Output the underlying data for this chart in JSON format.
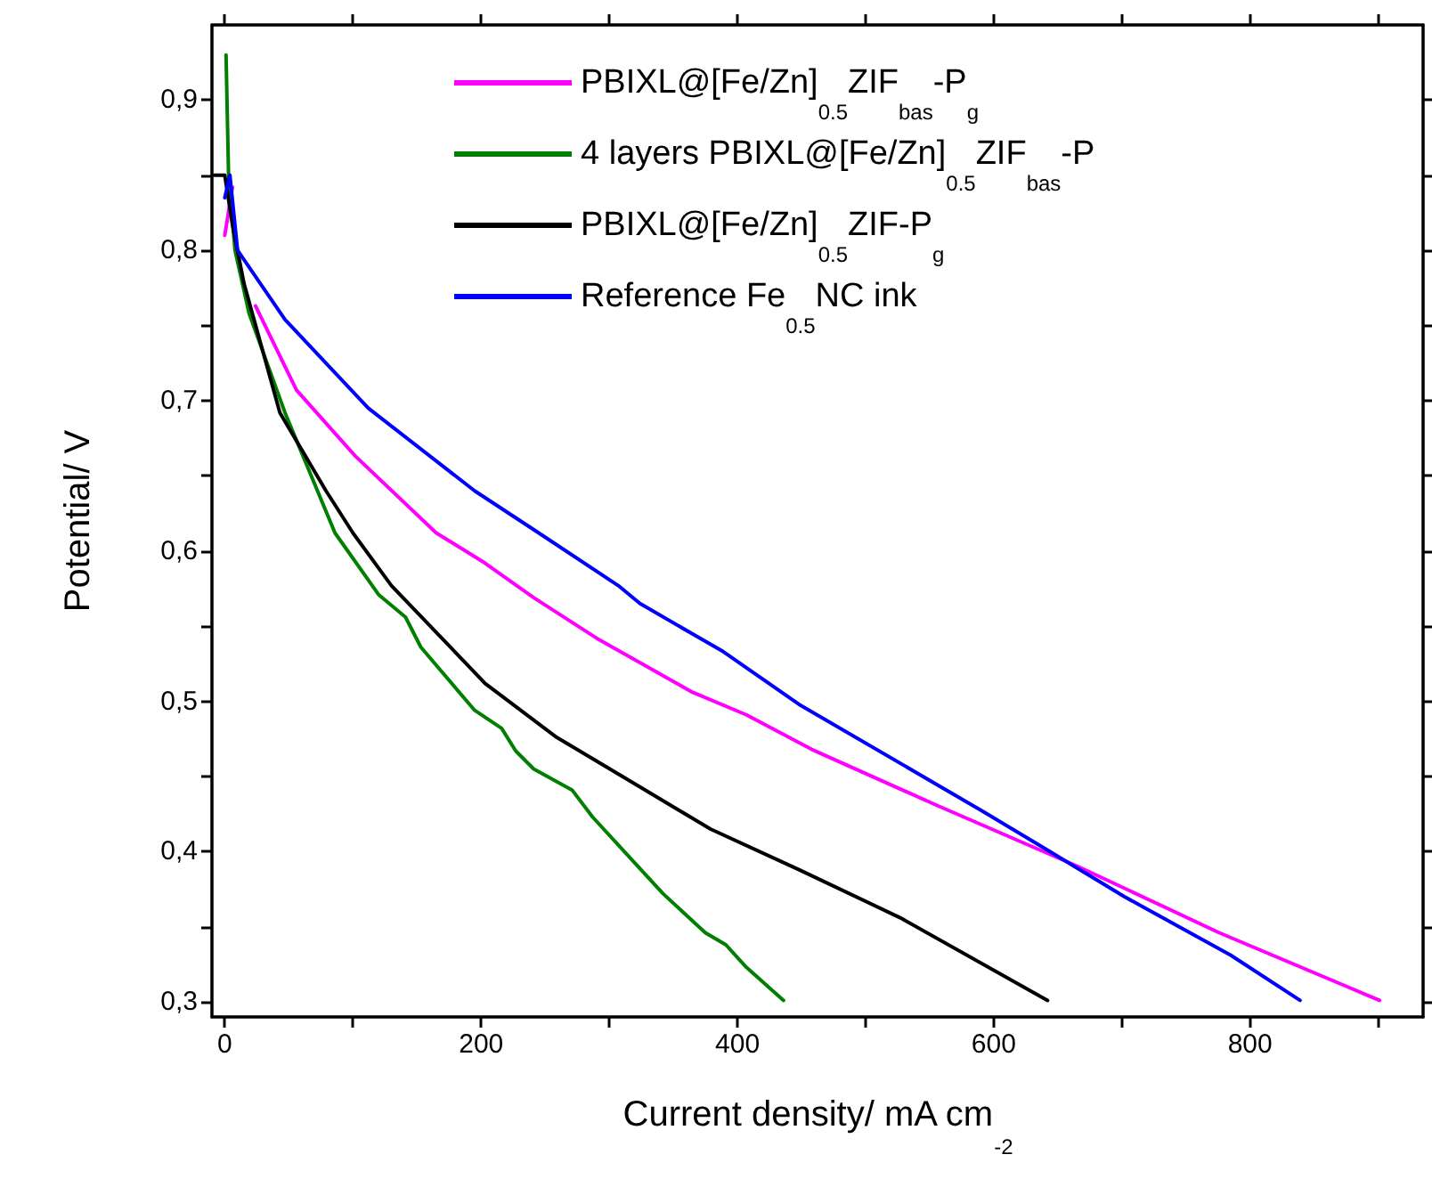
{
  "chart_data": {
    "type": "line",
    "xlabel": "Current density/ mA cm$_{-2}$",
    "ylabel": "Potential/ V",
    "xlim": [
      -10,
      935
    ],
    "ylim": [
      0.29,
      0.95
    ],
    "xticks": [
      0,
      {
        "value": 100,
        "label": null
      },
      200,
      {
        "value": 300,
        "label": null
      },
      400,
      {
        "value": 500,
        "label": null
      },
      600,
      {
        "value": 700,
        "label": null
      },
      800,
      {
        "value": 900,
        "label": null
      }
    ],
    "yticks": [
      {
        "value": 0.3,
        "label": "0,3"
      },
      {
        "value": 0.35,
        "label": null
      },
      {
        "value": 0.4,
        "label": "0,4"
      },
      {
        "value": 0.45,
        "label": null
      },
      {
        "value": 0.5,
        "label": "0,5"
      },
      {
        "value": 0.55,
        "label": null
      },
      {
        "value": 0.6,
        "label": "0,6"
      },
      {
        "value": 0.65,
        "label": null
      },
      {
        "value": 0.7,
        "label": "0,7"
      },
      {
        "value": 0.75,
        "label": null
      },
      {
        "value": 0.8,
        "label": "0,8"
      },
      {
        "value": 0.85,
        "label": null
      },
      {
        "value": 0.9,
        "label": "0,9"
      }
    ],
    "grid": false,
    "legend": "top right",
    "marker": "none",
    "line_style": "solid",
    "series": [
      {
        "name": "PBIXL@[Fe/Zn]$_{0.5}$ZIF$_{bas}$-P$_{g}$",
        "color": "#ff00ff",
        "x": [
          0,
          6,
          9,
          24,
          56,
          102,
          165,
          203,
          241,
          292,
          365,
          407,
          458,
          555,
          666,
          776,
          901
        ],
        "values": [
          0.81,
          0.842,
          null,
          0.763,
          0.707,
          0.663,
          0.612,
          0.592,
          0.569,
          0.541,
          0.506,
          0.491,
          0.468,
          0.431,
          0.39,
          0.346,
          0.301
        ]
      },
      {
        "name": "4 layers PBIXL@[Fe/Zn]$_{0.5}$ZIF$_{bas}$-P",
        "color": "#007f00",
        "x": [
          1,
          3,
          8,
          19,
          47,
          86,
          120,
          141,
          153,
          195,
          216,
          227,
          241,
          271,
          287,
          315,
          342,
          375,
          391,
          407,
          436
        ],
        "values": [
          0.93,
          0.849,
          0.8,
          0.758,
          0.692,
          0.612,
          0.571,
          0.556,
          0.536,
          0.494,
          0.482,
          0.467,
          0.455,
          0.441,
          0.423,
          0.397,
          0.372,
          0.346,
          0.338,
          0.323,
          0.301
        ]
      },
      {
        "name": "PBIXL@[Fe/Zn]$_{0.5}$ZIF-P$_{g}$",
        "color": "#000000",
        "x": [
          -8,
          0,
          6,
          15,
          43,
          79,
          100,
          130,
          148,
          203,
          259,
          324,
          379,
          448,
          527,
          642
        ],
        "values": [
          0.85,
          0.85,
          0.817,
          0.778,
          0.692,
          0.64,
          0.612,
          0.577,
          0.561,
          0.512,
          0.476,
          0.443,
          0.415,
          0.388,
          0.356,
          0.301
        ]
      },
      {
        "name": "Reference Fe$_{0.5}$NC ink",
        "color": "#0000ff",
        "x": [
          0,
          4,
          10,
          47,
          112,
          195,
          245,
          307,
          324,
          389,
          448,
          591,
          638,
          702,
          785,
          839
        ],
        "values": [
          0.835,
          0.85,
          0.8,
          0.754,
          0.695,
          0.64,
          0.612,
          0.577,
          0.565,
          0.533,
          0.498,
          0.427,
          0.403,
          0.37,
          0.331,
          0.301
        ]
      }
    ]
  }
}
